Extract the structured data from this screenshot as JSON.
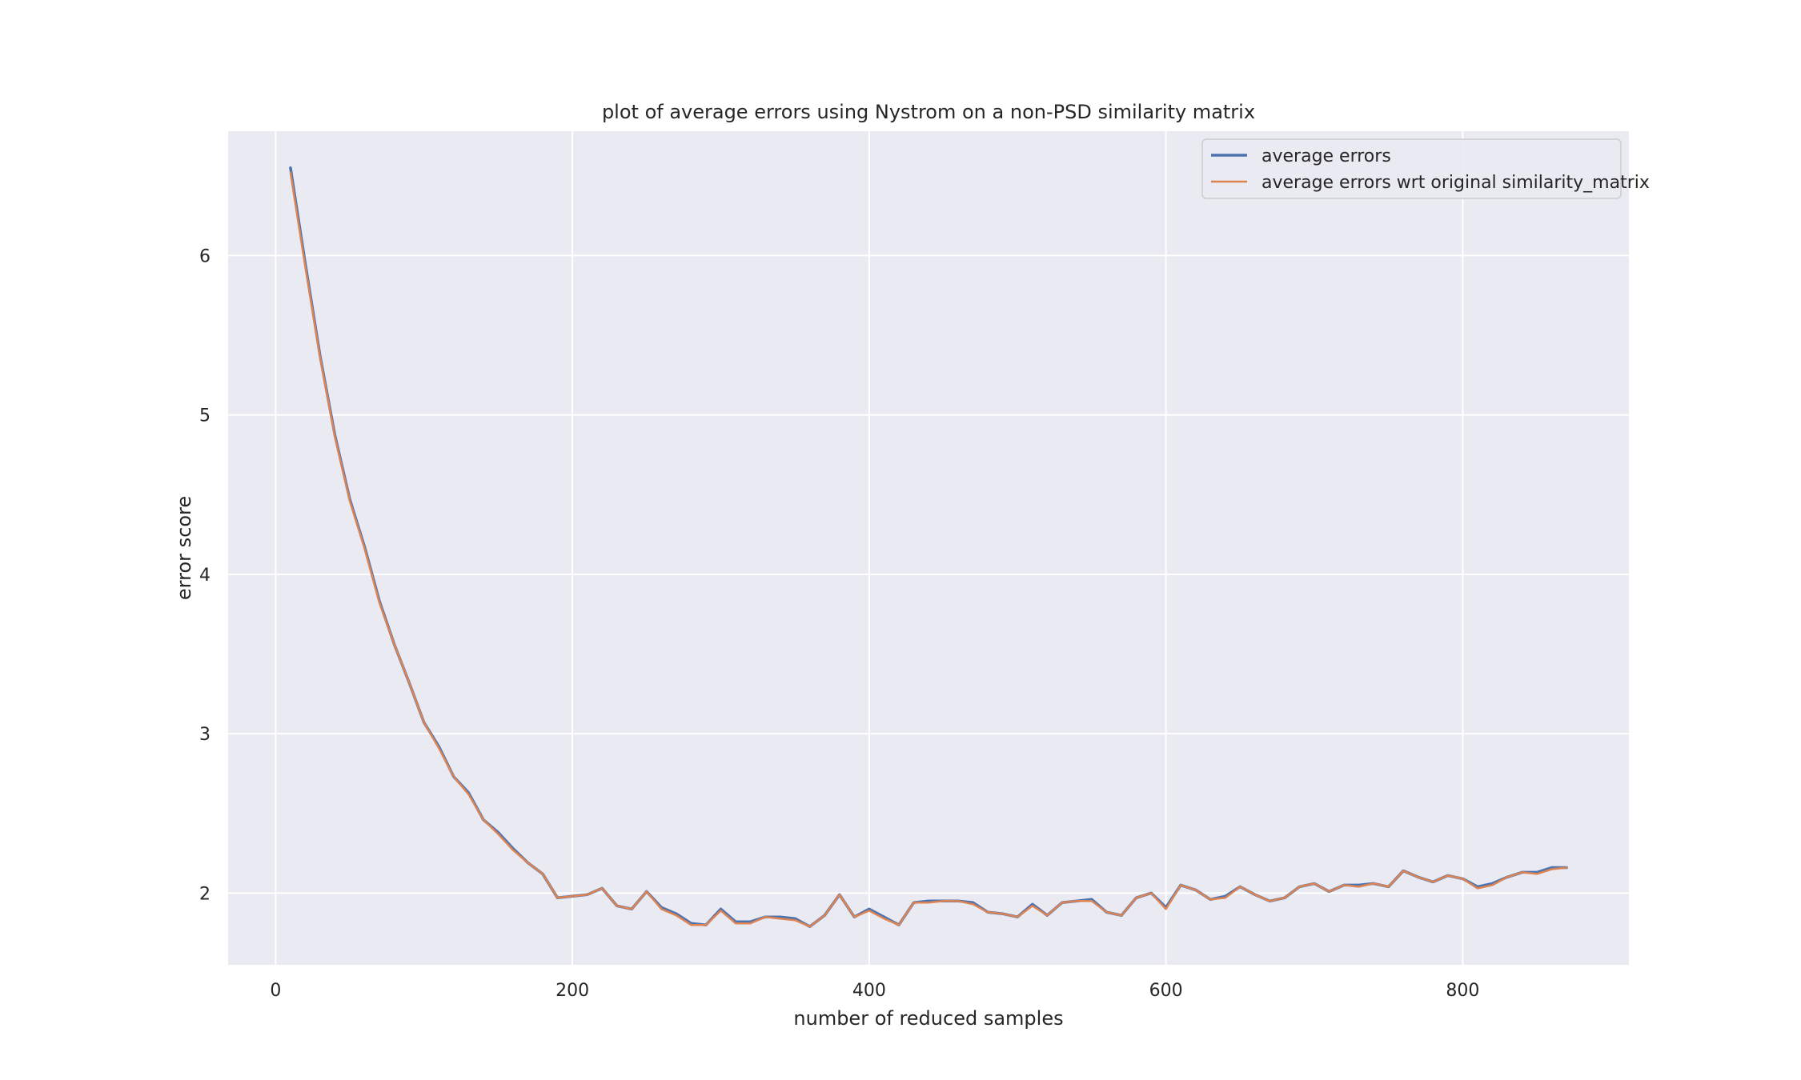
{
  "chart_data": {
    "type": "line",
    "title": "plot of average errors using Nystrom on a non-PSD similarity matrix",
    "xlabel": "number of reduced samples",
    "ylabel": "error score",
    "xlim": [
      -32,
      912
    ],
    "ylim": [
      1.55,
      6.78
    ],
    "xticks": [
      0,
      200,
      400,
      600,
      800
    ],
    "yticks": [
      2,
      3,
      4,
      5,
      6
    ],
    "grid": true,
    "legend": "top-right",
    "x": [
      10,
      20,
      30,
      40,
      50,
      60,
      70,
      80,
      90,
      100,
      110,
      120,
      130,
      140,
      150,
      160,
      170,
      180,
      190,
      200,
      210,
      220,
      230,
      240,
      250,
      260,
      270,
      280,
      290,
      300,
      310,
      320,
      330,
      340,
      350,
      360,
      370,
      380,
      390,
      400,
      410,
      420,
      430,
      440,
      450,
      460,
      470,
      480,
      490,
      500,
      510,
      520,
      530,
      540,
      550,
      560,
      570,
      580,
      590,
      600,
      610,
      620,
      630,
      640,
      650,
      660,
      670,
      680,
      690,
      700,
      710,
      720,
      730,
      740,
      750,
      760,
      770,
      780,
      790,
      800,
      810,
      820,
      830,
      840,
      850,
      860,
      870
    ],
    "series": [
      {
        "name": "average errors",
        "color": "#4c72b0",
        "values": [
          6.55,
          5.95,
          5.37,
          4.87,
          4.47,
          4.17,
          3.83,
          3.56,
          3.32,
          3.07,
          2.92,
          2.73,
          2.63,
          2.46,
          2.38,
          2.28,
          2.19,
          2.12,
          1.97,
          1.98,
          1.99,
          2.03,
          1.92,
          1.9,
          2.01,
          1.91,
          1.87,
          1.81,
          1.8,
          1.9,
          1.82,
          1.82,
          1.85,
          1.85,
          1.84,
          1.79,
          1.86,
          1.99,
          1.85,
          1.9,
          1.85,
          1.8,
          1.94,
          1.95,
          1.95,
          1.95,
          1.94,
          1.88,
          1.87,
          1.85,
          1.93,
          1.86,
          1.94,
          1.95,
          1.96,
          1.88,
          1.86,
          1.97,
          2.0,
          1.91,
          2.05,
          2.02,
          1.96,
          1.98,
          2.04,
          1.99,
          1.95,
          1.97,
          2.04,
          2.06,
          2.01,
          2.05,
          2.05,
          2.06,
          2.04,
          2.14,
          2.1,
          2.07,
          2.11,
          2.09,
          2.04,
          2.06,
          2.1,
          2.13,
          2.13,
          2.16,
          2.16
        ]
      },
      {
        "name": "average errors wrt original similarity_matrix",
        "color": "#dd8452",
        "values": [
          6.52,
          5.93,
          5.36,
          4.86,
          4.46,
          4.16,
          3.82,
          3.56,
          3.32,
          3.07,
          2.91,
          2.73,
          2.62,
          2.46,
          2.37,
          2.27,
          2.19,
          2.12,
          1.97,
          1.98,
          1.99,
          2.03,
          1.92,
          1.9,
          2.01,
          1.9,
          1.86,
          1.8,
          1.8,
          1.89,
          1.81,
          1.81,
          1.85,
          1.84,
          1.83,
          1.79,
          1.86,
          1.99,
          1.85,
          1.89,
          1.84,
          1.8,
          1.94,
          1.94,
          1.95,
          1.95,
          1.93,
          1.88,
          1.87,
          1.85,
          1.92,
          1.86,
          1.94,
          1.95,
          1.95,
          1.88,
          1.86,
          1.97,
          2.0,
          1.9,
          2.05,
          2.02,
          1.96,
          1.97,
          2.04,
          1.99,
          1.95,
          1.97,
          2.04,
          2.06,
          2.01,
          2.05,
          2.04,
          2.06,
          2.04,
          2.14,
          2.1,
          2.07,
          2.11,
          2.09,
          2.03,
          2.05,
          2.1,
          2.13,
          2.12,
          2.15,
          2.16
        ]
      }
    ]
  }
}
